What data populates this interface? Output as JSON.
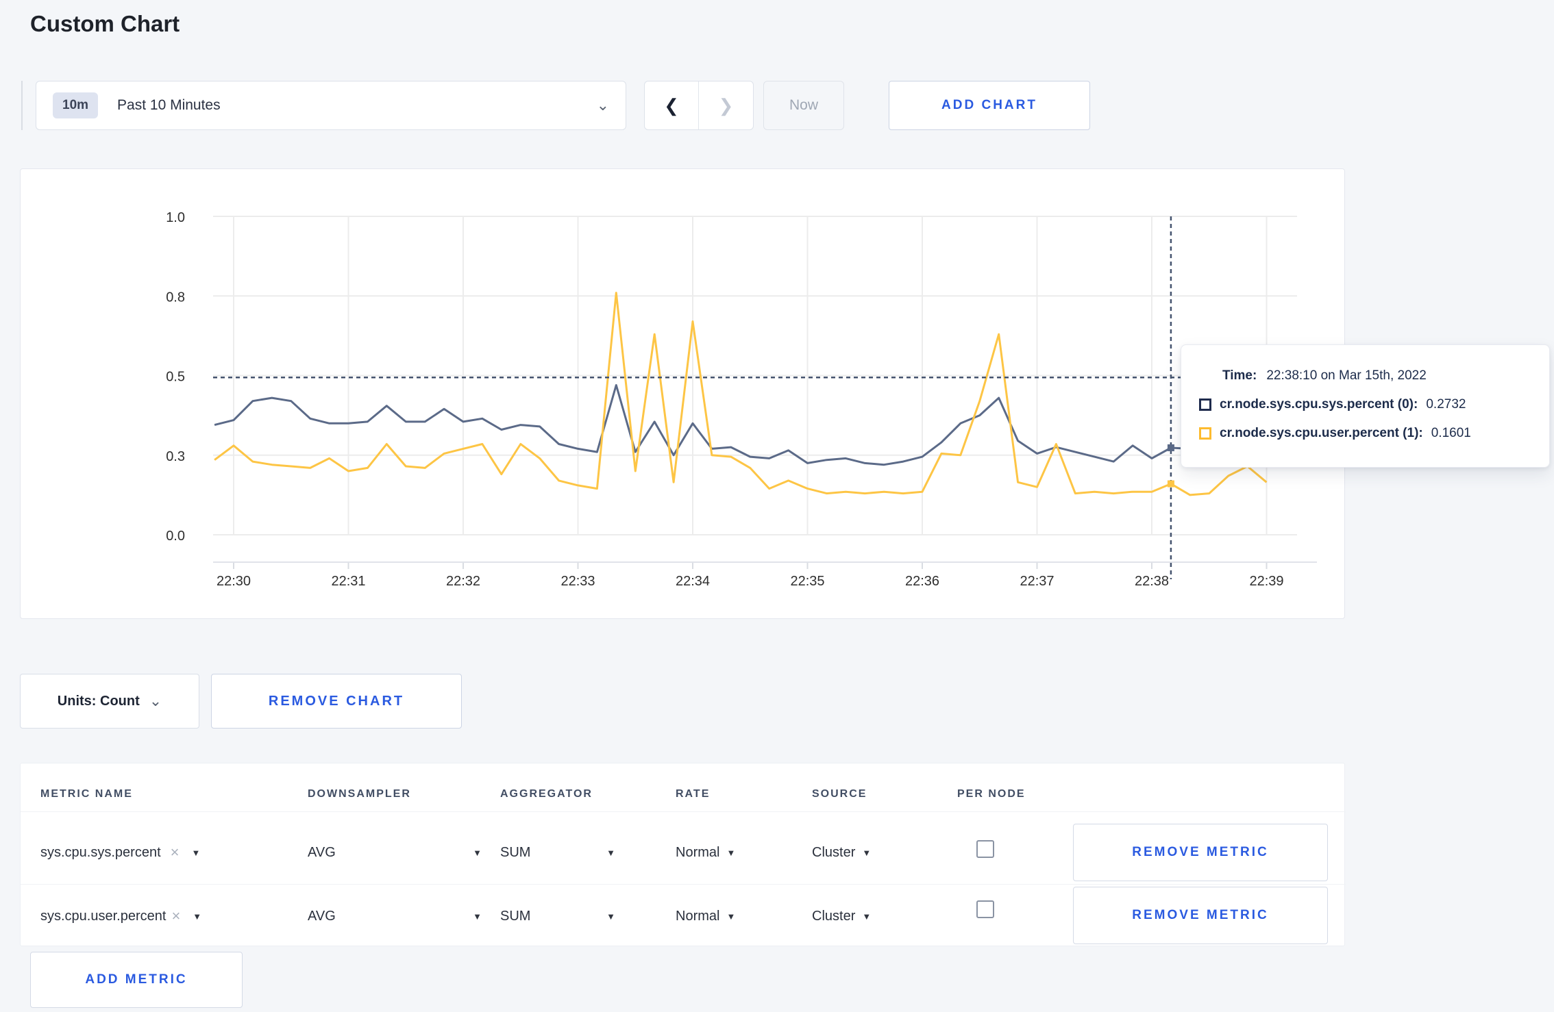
{
  "page": {
    "title": "Custom Chart"
  },
  "toolbar": {
    "time_range": {
      "badge": "10m",
      "label": "Past 10 Minutes",
      "chevron": "⌄"
    },
    "prev_arrow": "❮",
    "next_arrow": "❯",
    "now_label": "Now",
    "add_chart_label": "ADD CHART"
  },
  "units_bar": {
    "units_label": "Units: Count",
    "units_chevron": "⌄",
    "remove_chart_label": "REMOVE CHART"
  },
  "tooltip": {
    "time_label": "Time:",
    "time_value": "22:38:10 on Mar 15th, 2022",
    "series": [
      {
        "name": "cr.node.sys.cpu.sys.percent (0):",
        "value": "0.2732",
        "color": "#1f2b4d"
      },
      {
        "name": "cr.node.sys.cpu.user.percent (1):",
        "value": "0.1601",
        "color": "#fdbb2f"
      }
    ]
  },
  "chart_data": {
    "type": "line",
    "title": "",
    "xlabel": "",
    "ylabel": "",
    "ylim": [
      0,
      1.0
    ],
    "grid": true,
    "legend_position": "none",
    "y_tick_labels": [
      "0.0",
      "0.3",
      "0.5",
      "0.8",
      "1.0"
    ],
    "y_tick_values": [
      0,
      0.25,
      0.5,
      0.75,
      1.0
    ],
    "x_tick_labels": [
      "22:30",
      "22:31",
      "22:32",
      "22:33",
      "22:34",
      "22:35",
      "22:36",
      "22:37",
      "22:38",
      "22:39"
    ],
    "x_times": [
      "22:29:50",
      "22:30:00",
      "22:30:10",
      "22:30:20",
      "22:30:30",
      "22:30:40",
      "22:30:50",
      "22:31:00",
      "22:31:10",
      "22:31:20",
      "22:31:30",
      "22:31:40",
      "22:31:50",
      "22:32:00",
      "22:32:10",
      "22:32:20",
      "22:32:30",
      "22:32:40",
      "22:32:50",
      "22:33:00",
      "22:33:10",
      "22:33:20",
      "22:33:30",
      "22:33:40",
      "22:33:50",
      "22:34:00",
      "22:34:10",
      "22:34:20",
      "22:34:30",
      "22:34:40",
      "22:34:50",
      "22:35:00",
      "22:35:10",
      "22:35:20",
      "22:35:30",
      "22:35:40",
      "22:35:50",
      "22:36:00",
      "22:36:10",
      "22:36:20",
      "22:36:30",
      "22:36:40",
      "22:36:50",
      "22:37:00",
      "22:37:10",
      "22:37:20",
      "22:37:30",
      "22:37:40",
      "22:37:50",
      "22:38:00",
      "22:38:10",
      "22:38:20",
      "22:38:30",
      "22:38:40",
      "22:38:50",
      "22:39:00"
    ],
    "series": [
      {
        "name": "cr.node.sys.cpu.sys.percent",
        "color": "#5b6a88",
        "values": [
          0.345,
          0.36,
          0.42,
          0.43,
          0.42,
          0.365,
          0.35,
          0.35,
          0.355,
          0.405,
          0.355,
          0.355,
          0.395,
          0.355,
          0.365,
          0.33,
          0.345,
          0.34,
          0.285,
          0.27,
          0.26,
          0.47,
          0.26,
          0.355,
          0.25,
          0.35,
          0.27,
          0.275,
          0.245,
          0.24,
          0.265,
          0.225,
          0.235,
          0.24,
          0.225,
          0.22,
          0.23,
          0.245,
          0.29,
          0.35,
          0.375,
          0.43,
          0.295,
          0.255,
          0.275,
          0.26,
          0.245,
          0.23,
          0.28,
          0.24,
          0.2732,
          0.27,
          0.275,
          0.28,
          0.275,
          0.27
        ]
      },
      {
        "name": "cr.node.sys.cpu.user.percent",
        "color": "#fdc545",
        "values": [
          0.235,
          0.28,
          0.23,
          0.22,
          0.215,
          0.21,
          0.24,
          0.2,
          0.21,
          0.285,
          0.215,
          0.21,
          0.255,
          0.27,
          0.285,
          0.19,
          0.285,
          0.24,
          0.17,
          0.155,
          0.145,
          0.76,
          0.2,
          0.63,
          0.165,
          0.67,
          0.25,
          0.245,
          0.21,
          0.145,
          0.17,
          0.145,
          0.13,
          0.135,
          0.13,
          0.135,
          0.13,
          0.135,
          0.255,
          0.25,
          0.42,
          0.63,
          0.165,
          0.15,
          0.285,
          0.13,
          0.135,
          0.13,
          0.135,
          0.135,
          0.1601,
          0.125,
          0.13,
          0.185,
          0.215,
          0.165
        ]
      }
    ],
    "crosshair": {
      "time": "22:38:10",
      "mouse_value": 0.494
    }
  },
  "metrics_table": {
    "headers": [
      "METRIC NAME",
      "DOWNSAMPLER",
      "AGGREGATOR",
      "RATE",
      "SOURCE",
      "PER NODE"
    ],
    "rows": [
      {
        "name": "sys.cpu.sys.percent",
        "downsampler": "AVG",
        "aggregator": "SUM",
        "rate": "Normal",
        "source": "Cluster",
        "remove_label": "REMOVE METRIC"
      },
      {
        "name": "sys.cpu.user.percent",
        "downsampler": "AVG",
        "aggregator": "SUM",
        "rate": "Normal",
        "source": "Cluster",
        "remove_label": "REMOVE METRIC"
      }
    ],
    "add_metric_label": "ADD METRIC"
  }
}
